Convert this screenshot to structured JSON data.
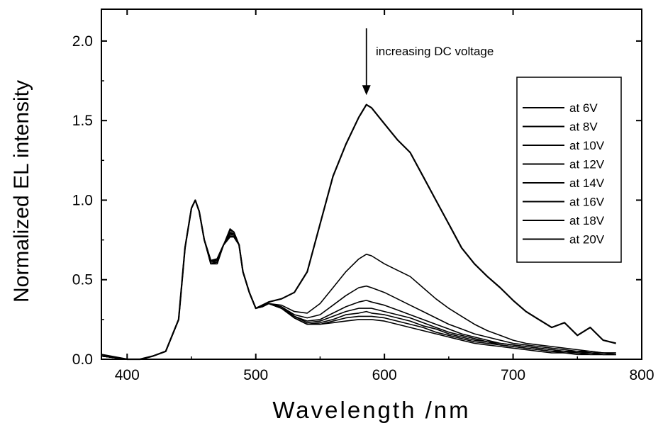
{
  "chart_data": {
    "type": "line",
    "title": "",
    "xlabel": "Wavelength /nm",
    "ylabel": "Normalized EL intensity",
    "xlim": [
      380,
      800
    ],
    "ylim": [
      0.0,
      2.2
    ],
    "xticks": [
      400,
      500,
      600,
      700,
      800
    ],
    "yticks": [
      0.0,
      0.5,
      1.0,
      1.5,
      2.0
    ],
    "xtick_labels": [
      "400",
      "500",
      "600",
      "700",
      "800"
    ],
    "ytick_labels": [
      "0.0",
      "0.5",
      "1.0",
      "1.5",
      "2.0"
    ],
    "grid": false,
    "legend_position": "top-right",
    "annotation": {
      "text": "increasing DC voltage",
      "x": 586,
      "y": 2.0,
      "arrow_to_y": 1.66
    },
    "x": [
      380,
      400,
      410,
      420,
      430,
      440,
      445,
      450,
      453,
      456,
      460,
      465,
      470,
      475,
      480,
      483,
      487,
      490,
      495,
      500,
      505,
      510,
      520,
      530,
      540,
      550,
      560,
      570,
      580,
      586,
      590,
      600,
      610,
      620,
      630,
      640,
      650,
      660,
      670,
      680,
      690,
      700,
      710,
      720,
      730,
      740,
      750,
      760,
      770,
      780
    ],
    "series": [
      {
        "name": "at 6V",
        "values": [
          0.02,
          0.0,
          0.0,
          0.02,
          0.05,
          0.25,
          0.7,
          0.95,
          1.0,
          0.93,
          0.75,
          0.6,
          0.6,
          0.72,
          0.82,
          0.8,
          0.72,
          0.55,
          0.42,
          0.32,
          0.33,
          0.35,
          0.32,
          0.26,
          0.22,
          0.22,
          0.23,
          0.24,
          0.25,
          0.25,
          0.25,
          0.24,
          0.22,
          0.2,
          0.18,
          0.16,
          0.14,
          0.12,
          0.1,
          0.09,
          0.08,
          0.07,
          0.06,
          0.05,
          0.04,
          0.04,
          0.03,
          0.03,
          0.03,
          0.03
        ]
      },
      {
        "name": "at 8V",
        "values": [
          0.02,
          0.0,
          0.0,
          0.02,
          0.05,
          0.25,
          0.7,
          0.95,
          1.0,
          0.93,
          0.75,
          0.6,
          0.6,
          0.72,
          0.81,
          0.8,
          0.72,
          0.55,
          0.42,
          0.32,
          0.33,
          0.35,
          0.32,
          0.26,
          0.22,
          0.22,
          0.24,
          0.26,
          0.27,
          0.27,
          0.27,
          0.26,
          0.24,
          0.22,
          0.2,
          0.17,
          0.15,
          0.13,
          0.11,
          0.1,
          0.09,
          0.08,
          0.07,
          0.06,
          0.05,
          0.04,
          0.04,
          0.03,
          0.03,
          0.03
        ]
      },
      {
        "name": "at 10V",
        "values": [
          0.02,
          0.0,
          0.0,
          0.02,
          0.05,
          0.25,
          0.7,
          0.95,
          1.0,
          0.93,
          0.75,
          0.6,
          0.61,
          0.72,
          0.8,
          0.79,
          0.72,
          0.55,
          0.42,
          0.32,
          0.33,
          0.35,
          0.32,
          0.26,
          0.22,
          0.23,
          0.25,
          0.28,
          0.29,
          0.3,
          0.29,
          0.28,
          0.26,
          0.24,
          0.21,
          0.19,
          0.16,
          0.14,
          0.12,
          0.11,
          0.09,
          0.08,
          0.07,
          0.06,
          0.05,
          0.05,
          0.04,
          0.04,
          0.03,
          0.03
        ]
      },
      {
        "name": "at 12V",
        "values": [
          0.02,
          0.0,
          0.0,
          0.02,
          0.05,
          0.25,
          0.7,
          0.95,
          1.0,
          0.93,
          0.75,
          0.61,
          0.61,
          0.72,
          0.79,
          0.79,
          0.72,
          0.55,
          0.42,
          0.32,
          0.33,
          0.35,
          0.32,
          0.27,
          0.23,
          0.24,
          0.27,
          0.3,
          0.32,
          0.32,
          0.32,
          0.3,
          0.28,
          0.26,
          0.23,
          0.2,
          0.17,
          0.15,
          0.13,
          0.11,
          0.1,
          0.09,
          0.08,
          0.07,
          0.06,
          0.05,
          0.04,
          0.04,
          0.03,
          0.03
        ]
      },
      {
        "name": "at 14V",
        "values": [
          0.02,
          0.0,
          0.0,
          0.02,
          0.05,
          0.25,
          0.7,
          0.95,
          1.0,
          0.93,
          0.75,
          0.61,
          0.62,
          0.72,
          0.79,
          0.78,
          0.72,
          0.55,
          0.42,
          0.32,
          0.33,
          0.35,
          0.33,
          0.27,
          0.24,
          0.25,
          0.29,
          0.33,
          0.36,
          0.37,
          0.36,
          0.34,
          0.31,
          0.28,
          0.25,
          0.22,
          0.19,
          0.16,
          0.14,
          0.12,
          0.1,
          0.09,
          0.08,
          0.07,
          0.06,
          0.05,
          0.05,
          0.04,
          0.04,
          0.03
        ]
      },
      {
        "name": "at 16V",
        "values": [
          0.02,
          0.0,
          0.0,
          0.02,
          0.05,
          0.25,
          0.7,
          0.95,
          1.0,
          0.93,
          0.75,
          0.62,
          0.62,
          0.72,
          0.78,
          0.78,
          0.72,
          0.55,
          0.42,
          0.32,
          0.33,
          0.35,
          0.33,
          0.28,
          0.26,
          0.28,
          0.34,
          0.4,
          0.45,
          0.46,
          0.45,
          0.42,
          0.38,
          0.34,
          0.3,
          0.26,
          0.22,
          0.19,
          0.16,
          0.14,
          0.12,
          0.1,
          0.09,
          0.08,
          0.07,
          0.06,
          0.05,
          0.05,
          0.04,
          0.04
        ]
      },
      {
        "name": "at 18V",
        "values": [
          0.02,
          0.0,
          0.0,
          0.02,
          0.05,
          0.25,
          0.7,
          0.95,
          1.0,
          0.93,
          0.75,
          0.62,
          0.63,
          0.72,
          0.77,
          0.77,
          0.72,
          0.55,
          0.42,
          0.32,
          0.33,
          0.35,
          0.34,
          0.3,
          0.29,
          0.35,
          0.45,
          0.55,
          0.63,
          0.66,
          0.65,
          0.6,
          0.56,
          0.52,
          0.45,
          0.38,
          0.32,
          0.27,
          0.22,
          0.18,
          0.15,
          0.12,
          0.1,
          0.09,
          0.08,
          0.07,
          0.06,
          0.05,
          0.04,
          0.04
        ]
      },
      {
        "name": "at 20V",
        "values": [
          0.03,
          0.0,
          0.0,
          0.02,
          0.05,
          0.25,
          0.7,
          0.95,
          1.0,
          0.93,
          0.75,
          0.62,
          0.63,
          0.72,
          0.77,
          0.77,
          0.72,
          0.55,
          0.42,
          0.32,
          0.34,
          0.36,
          0.38,
          0.42,
          0.55,
          0.85,
          1.15,
          1.35,
          1.52,
          1.6,
          1.58,
          1.48,
          1.38,
          1.3,
          1.15,
          1.0,
          0.85,
          0.7,
          0.6,
          0.52,
          0.45,
          0.37,
          0.3,
          0.25,
          0.2,
          0.23,
          0.15,
          0.2,
          0.12,
          0.1
        ]
      }
    ]
  }
}
